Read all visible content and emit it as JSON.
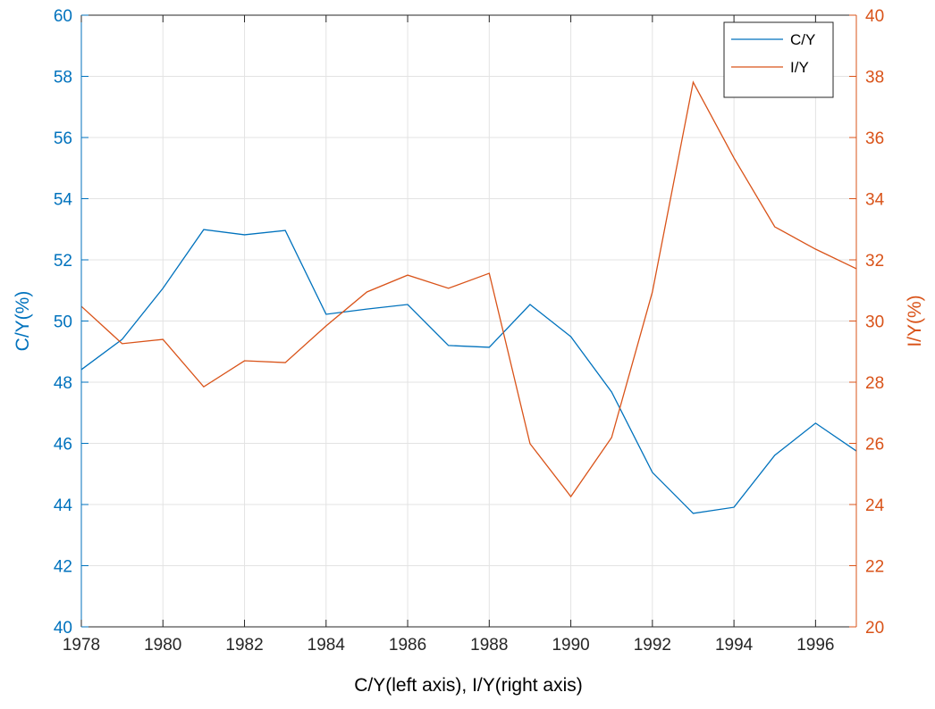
{
  "chart_data": {
    "type": "line",
    "xlabel": "C/Y(left axis), I/Y(right axis)",
    "ylabel": "C/Y(%)",
    "y2label": "I/Y(%)",
    "x": [
      1978,
      1979,
      1980,
      1981,
      1982,
      1983,
      1984,
      1985,
      1986,
      1987,
      1988,
      1989,
      1990,
      1991,
      1992,
      1993,
      1994,
      1995,
      1996,
      1997
    ],
    "series": [
      {
        "name": "C/Y",
        "color": "#0072BD",
        "axis": "y",
        "values": [
          48.41,
          49.4,
          51.07,
          52.99,
          52.82,
          52.96,
          50.22,
          50.39,
          50.54,
          49.2,
          49.14,
          50.54,
          49.49,
          47.68,
          45.05,
          43.71,
          43.91,
          45.61,
          46.66,
          45.75
        ]
      },
      {
        "name": "I/Y",
        "color": "#D95319",
        "axis": "y2",
        "values": [
          30.48,
          29.26,
          29.4,
          27.85,
          28.7,
          28.64,
          29.84,
          30.95,
          31.5,
          31.07,
          31.56,
          25.99,
          24.26,
          26.19,
          30.95,
          37.81,
          35.33,
          33.08,
          32.35,
          31.71
        ]
      }
    ],
    "xlim": [
      1978,
      1997
    ],
    "xticks": [
      1978,
      1980,
      1982,
      1984,
      1986,
      1988,
      1990,
      1992,
      1994,
      1996
    ],
    "ylim": [
      40,
      60
    ],
    "yticks": [
      40,
      42,
      44,
      46,
      48,
      50,
      52,
      54,
      56,
      58,
      60
    ],
    "y2lim": [
      20,
      40
    ],
    "y2ticks": [
      20,
      22,
      24,
      26,
      28,
      30,
      32,
      34,
      36,
      38,
      40
    ],
    "grid": true,
    "legend": "upper right"
  }
}
